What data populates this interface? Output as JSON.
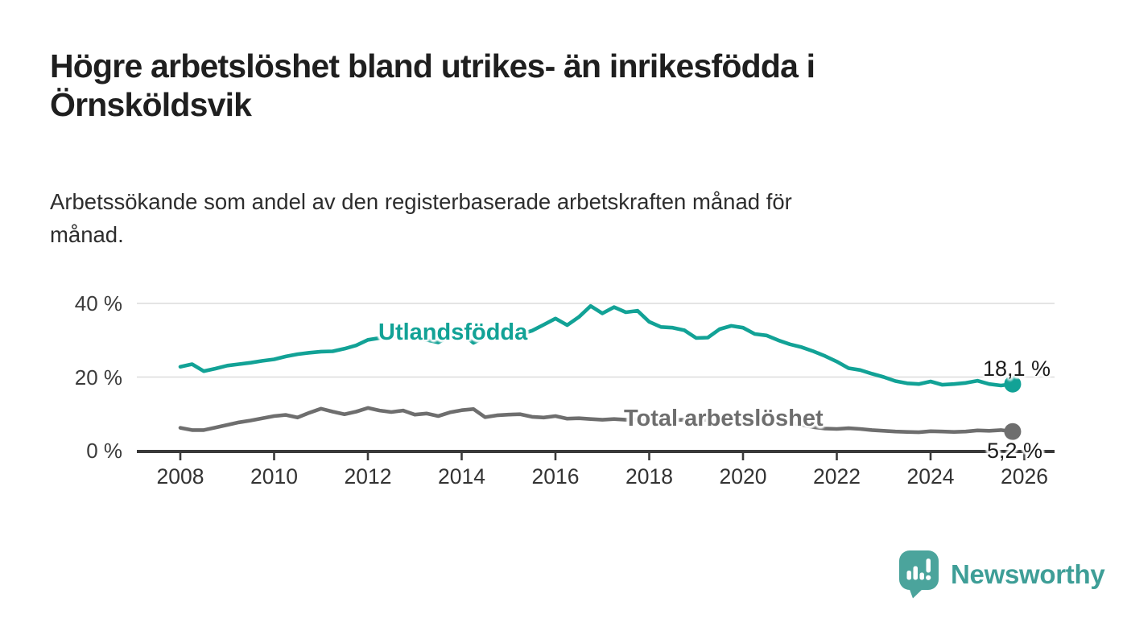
{
  "header": {
    "title": "Högre arbetslöshet bland utrikes- än inrikesfödda i\nÖrnsköldsvik",
    "subtitle": "Arbetssökande som andel av den registerbaserade arbetskraften månad för\nmånad."
  },
  "chart_data": {
    "type": "line",
    "title": "Högre arbetslöshet bland utrikes- än inrikesfödda i Örnsköldsvik",
    "xlabel": "",
    "ylabel": "",
    "x_unit": "year (quarterly points)",
    "x_start": 2008.0,
    "x_step": 0.25,
    "xlim": [
      2008,
      2026.6
    ],
    "ylim": [
      0,
      44
    ],
    "grid": "horizontal",
    "y_ticks": [
      0,
      20,
      40
    ],
    "y_tick_labels": [
      "0 %",
      "20 %",
      "40 %"
    ],
    "x_ticks": [
      2008,
      2010,
      2012,
      2014,
      2016,
      2018,
      2020,
      2022,
      2024,
      2026
    ],
    "x_tick_labels": [
      "2008",
      "2010",
      "2012",
      "2014",
      "2016",
      "2018",
      "2020",
      "2022",
      "2024",
      "2026"
    ],
    "legend_position": "inline-labels",
    "series": [
      {
        "name": "Utlandsfödda",
        "color": "#12a296",
        "end_label": "18,1 %",
        "end_value": 18.1,
        "values": [
          22.8,
          23.5,
          21.6,
          22.3,
          23.1,
          23.5,
          23.9,
          24.4,
          24.8,
          25.6,
          26.2,
          26.6,
          26.9,
          27.0,
          27.7,
          28.6,
          30.1,
          30.6,
          31.2,
          30.9,
          31.0,
          30.1,
          29.4,
          31.1,
          31.9,
          29.3,
          30.9,
          32.2,
          30.5,
          31.6,
          32.6,
          34.2,
          35.9,
          34.1,
          36.3,
          39.3,
          37.3,
          39.0,
          37.6,
          38.0,
          35.0,
          33.6,
          33.4,
          32.7,
          30.6,
          30.7,
          33.0,
          33.9,
          33.4,
          31.7,
          31.3,
          30.0,
          28.9,
          28.1,
          27.0,
          25.7,
          24.2,
          22.4,
          21.9,
          20.9,
          20.0,
          18.9,
          18.3,
          18.1,
          18.8,
          17.9,
          18.1,
          18.4,
          19.0,
          18.1,
          17.7,
          18.1
        ]
      },
      {
        "name": "Total arbetslöshet",
        "color": "#6e6e6e",
        "end_label": "5,2 %",
        "end_value": 5.2,
        "values": [
          6.2,
          5.6,
          5.6,
          6.3,
          7.0,
          7.7,
          8.2,
          8.8,
          9.4,
          9.7,
          9.0,
          10.3,
          11.4,
          10.6,
          9.9,
          10.6,
          11.6,
          10.9,
          10.5,
          10.9,
          9.8,
          10.1,
          9.4,
          10.4,
          11.0,
          11.3,
          9.1,
          9.6,
          9.8,
          9.9,
          9.2,
          9.0,
          9.4,
          8.7,
          8.8,
          8.6,
          8.4,
          8.6,
          8.4,
          8.5,
          8.3,
          8.5,
          8.3,
          8.4,
          8.2,
          8.4,
          8.2,
          8.1,
          8.5,
          9.3,
          9.4,
          8.9,
          7.8,
          7.0,
          6.4,
          6.0,
          5.9,
          6.1,
          5.9,
          5.6,
          5.4,
          5.2,
          5.1,
          5.0,
          5.3,
          5.2,
          5.1,
          5.2,
          5.5,
          5.4,
          5.6,
          5.2
        ]
      }
    ]
  },
  "footer": {
    "brand": "Newsworthy"
  },
  "icons": {
    "logo": "newsworthy-speech-bubble-bar-chart-icon"
  },
  "colors": {
    "series_teal": "#12a296",
    "series_gray": "#6e6e6e",
    "gridline": "#dbdbdb",
    "axis": "#3a3a3a",
    "title_text": "#1f1f1f",
    "body_text": "#2d2d2d",
    "logo_icon_teal": "#4ba49c",
    "logo_text_teal": "#3e9e97"
  }
}
